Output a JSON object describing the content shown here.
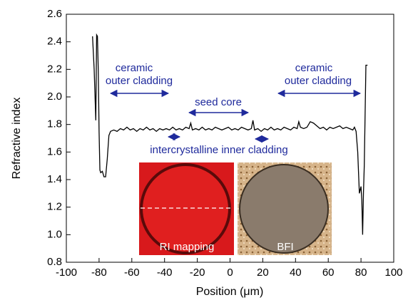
{
  "chart_data": {
    "type": "line",
    "xlabel": "Position (μm)",
    "ylabel": "Refractive index",
    "xlim": [
      -100,
      100
    ],
    "ylim": [
      0.8,
      2.6
    ],
    "xticks": [
      -100,
      -80,
      -60,
      -40,
      -20,
      0,
      20,
      40,
      60,
      80,
      100
    ],
    "yticks": [
      0.8,
      {
        "value": 1,
        "label": "1.0"
      },
      1.2,
      1.4,
      1.6,
      1.8,
      {
        "value": 2,
        "label": "2.0"
      },
      2.2,
      2.4,
      2.6
    ],
    "series": [
      {
        "color": "#000000",
        "x": [
          -84,
          -83,
          -82,
          -81.5,
          -81,
          -80.5,
          -80,
          -79.5,
          -79,
          -78,
          -77,
          -76,
          -75,
          -74,
          -73,
          -71,
          -69,
          -67,
          -65,
          -63,
          -61,
          -59,
          -57,
          -55,
          -53,
          -51,
          -49,
          -47,
          -45,
          -43,
          -41,
          -39,
          -37,
          -35,
          -33,
          -31,
          -29,
          -27,
          -25,
          -24,
          -23,
          -21,
          -19,
          -17,
          -15,
          -13,
          -11,
          -9,
          -7,
          -5,
          -3,
          -1,
          1,
          3,
          5,
          7,
          9,
          11,
          13,
          14,
          15,
          17,
          19,
          21,
          23,
          25,
          27,
          29,
          31,
          33,
          35,
          37,
          39,
          41,
          42,
          43,
          45,
          47,
          49,
          51,
          53,
          55,
          57,
          59,
          61,
          63,
          65,
          67,
          69,
          71,
          73,
          75,
          76,
          77,
          78,
          79,
          80,
          80.5,
          81,
          81.5,
          82,
          83,
          84
        ],
        "values": [
          2.44,
          2.2,
          1.83,
          2.45,
          2.44,
          2.2,
          1.75,
          1.47,
          1.45,
          1.46,
          1.42,
          1.42,
          1.55,
          1.72,
          1.75,
          1.76,
          1.75,
          1.77,
          1.76,
          1.78,
          1.76,
          1.77,
          1.75,
          1.77,
          1.76,
          1.78,
          1.76,
          1.77,
          1.75,
          1.77,
          1.76,
          1.77,
          1.76,
          1.78,
          1.76,
          1.77,
          1.76,
          1.78,
          1.77,
          1.81,
          1.76,
          1.77,
          1.76,
          1.78,
          1.76,
          1.77,
          1.76,
          1.78,
          1.77,
          1.76,
          1.77,
          1.78,
          1.76,
          1.77,
          1.76,
          1.78,
          1.77,
          1.76,
          1.77,
          1.83,
          1.76,
          1.77,
          1.75,
          1.77,
          1.76,
          1.78,
          1.76,
          1.77,
          1.76,
          1.78,
          1.77,
          1.76,
          1.78,
          1.77,
          1.82,
          1.78,
          1.77,
          1.78,
          1.82,
          1.81,
          1.79,
          1.77,
          1.78,
          1.76,
          1.78,
          1.77,
          1.78,
          1.79,
          1.77,
          1.78,
          1.77,
          1.76,
          1.78,
          1.75,
          1.6,
          1.3,
          1.35,
          1.25,
          1.0,
          1.3,
          1.5,
          2.23,
          2.23
        ]
      }
    ],
    "annotations": [
      {
        "lines": [
          "ceramic",
          "outer cladding"
        ]
      },
      {
        "lines": [
          "seed core"
        ]
      },
      {
        "lines": [
          "intercrystalline inner cladding"
        ]
      },
      {
        "lines": [
          "ceramic",
          "outer cladding"
        ]
      }
    ],
    "insets": [
      "RI mapping",
      "BFI"
    ]
  }
}
